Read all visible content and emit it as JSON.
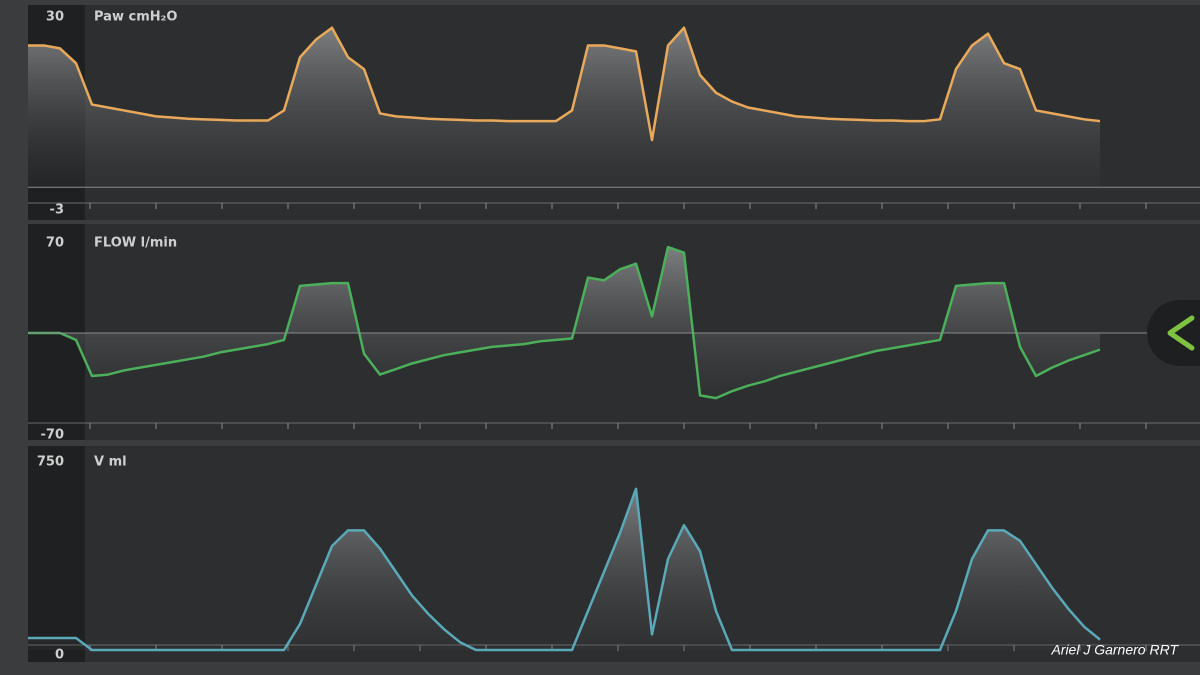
{
  "chart_data": [
    {
      "type": "line",
      "title": "Paw cmH₂O",
      "color": "#e9a95a",
      "ylim": [
        -3,
        30
      ],
      "yticks": [
        -3,
        30
      ],
      "categories": [
        null,
        null,
        null,
        null,
        null,
        null,
        null,
        null,
        null,
        null,
        null,
        null,
        null,
        null,
        null,
        null,
        null,
        null,
        null,
        null,
        null,
        null,
        null,
        null,
        null,
        null,
        null,
        null,
        null,
        null,
        null,
        null,
        null,
        null,
        null,
        null,
        null,
        null,
        null,
        null,
        null,
        null,
        null,
        null,
        null,
        null,
        null,
        null,
        null,
        null,
        null,
        null,
        null,
        null,
        null,
        null,
        null,
        null,
        null,
        null,
        null,
        null,
        null,
        null,
        null,
        null,
        null,
        null
      ],
      "values": [
        24,
        24,
        23.5,
        21,
        14,
        13.5,
        13,
        12.5,
        12,
        11.8,
        11.6,
        11.5,
        11.4,
        11.3,
        11.3,
        11.3,
        13,
        22,
        25,
        27,
        22,
        20,
        12.5,
        12,
        11.8,
        11.6,
        11.5,
        11.4,
        11.3,
        11.3,
        11.2,
        11.2,
        11.2,
        11.2,
        13,
        24,
        24,
        23.5,
        23,
        8,
        24,
        27,
        19,
        16,
        14.5,
        13.5,
        13,
        12.5,
        12,
        11.8,
        11.6,
        11.5,
        11.4,
        11.3,
        11.3,
        11.2,
        11.2,
        11.5,
        20,
        24,
        26,
        21,
        20,
        13,
        12.5,
        12,
        11.5,
        11.2
      ]
    },
    {
      "type": "line",
      "title": "FLOW l/min",
      "color": "#4caf5a",
      "ylim": [
        -70,
        70
      ],
      "yticks": [
        -70,
        70
      ],
      "categories": [
        null,
        null,
        null,
        null,
        null,
        null,
        null,
        null,
        null,
        null,
        null,
        null,
        null,
        null,
        null,
        null,
        null,
        null,
        null,
        null,
        null,
        null,
        null,
        null,
        null,
        null,
        null,
        null,
        null,
        null,
        null,
        null,
        null,
        null,
        null,
        null,
        null,
        null,
        null,
        null,
        null,
        null,
        null,
        null,
        null,
        null,
        null,
        null,
        null,
        null,
        null,
        null,
        null,
        null,
        null,
        null,
        null,
        null,
        null,
        null,
        null,
        null,
        null,
        null,
        null,
        null,
        null,
        null
      ],
      "values": [
        0,
        0,
        0,
        -5,
        -31,
        -30,
        -27,
        -25,
        -23,
        -21,
        -19,
        -17,
        -14,
        -12,
        -10,
        -8,
        -5,
        34,
        35,
        36,
        36,
        -15,
        -30,
        -26,
        -22,
        -19,
        -16,
        -14,
        -12,
        -10,
        -9,
        -8,
        -6,
        -5,
        -4,
        40,
        38,
        46,
        50,
        12,
        62,
        58,
        -45,
        -47,
        -42,
        -38,
        -35,
        -31,
        -28,
        -25,
        -22,
        -19,
        -16,
        -13,
        -11,
        -9,
        -7,
        -5,
        34,
        35,
        36,
        36,
        -10,
        -31,
        -25,
        -20,
        -16,
        -12
      ]
    },
    {
      "type": "line",
      "title": "V ml",
      "color": "#5aa9b8",
      "ylim": [
        0,
        750
      ],
      "yticks": [
        0,
        750
      ],
      "categories": [
        null,
        null,
        null,
        null,
        null,
        null,
        null,
        null,
        null,
        null,
        null,
        null,
        null,
        null,
        null,
        null,
        null,
        null,
        null,
        null,
        null,
        null,
        null,
        null,
        null,
        null,
        null,
        null,
        null,
        null,
        null,
        null,
        null,
        null,
        null,
        null,
        null,
        null,
        null,
        null,
        null,
        null,
        null,
        null,
        null,
        null,
        null,
        null,
        null,
        null,
        null,
        null,
        null,
        null,
        null,
        null,
        null,
        null,
        null,
        null,
        null,
        null,
        null,
        null,
        null,
        null,
        null,
        null
      ],
      "values": [
        46,
        46,
        46,
        46,
        0,
        0,
        0,
        0,
        0,
        0,
        0,
        0,
        0,
        0,
        0,
        0,
        0,
        100,
        250,
        400,
        460,
        460,
        390,
        300,
        210,
        140,
        80,
        30,
        0,
        0,
        0,
        0,
        0,
        0,
        0,
        150,
        300,
        450,
        620,
        60,
        350,
        480,
        380,
        150,
        0,
        0,
        0,
        0,
        0,
        0,
        0,
        0,
        0,
        0,
        0,
        0,
        0,
        0,
        150,
        350,
        460,
        460,
        420,
        330,
        240,
        160,
        90,
        40
      ]
    }
  ],
  "watermark": "Ariel J Garnero RRT"
}
